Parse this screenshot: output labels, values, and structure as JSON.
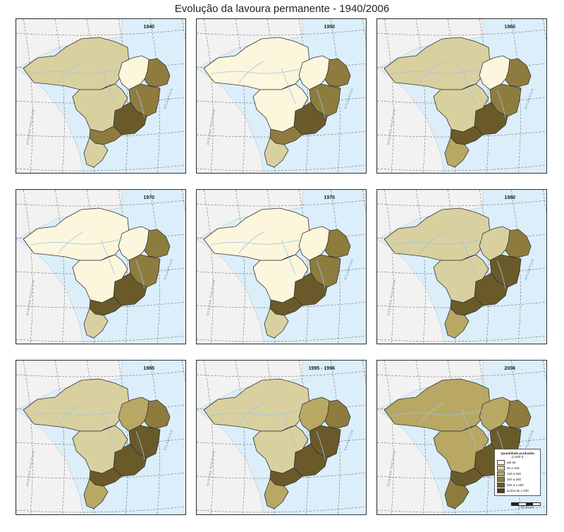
{
  "title": "Evolução da lavoura permanente - 1940/2006",
  "colors": {
    "ocean": "#dbeefa",
    "land_outside": "#f2f2f2",
    "class_0_50": "#fbf6dc",
    "class_50_100": "#d9d0a0",
    "class_100_200": "#b8a864",
    "class_200_500": "#8e7c3e",
    "class_500_1000": "#6a5a2a",
    "class_1000_plus": "#4a3f1c"
  },
  "legend": {
    "title": "Quantidade produzida",
    "unit": "(1.000 t)",
    "items": [
      {
        "label": "até 50",
        "class": "class_0_50"
      },
      {
        "label": "50 a 100",
        "class": "class_50_100"
      },
      {
        "label": "100 a 200",
        "class": "class_100_200"
      },
      {
        "label": "200 a 500",
        "class": "class_200_500"
      },
      {
        "label": "500 a 1.000",
        "class": "class_500_1000"
      },
      {
        "label": "acima de 1.000",
        "class": "class_1000_plus"
      }
    ]
  },
  "scale_label": "0   300   600 km",
  "ocean_labels": {
    "atlantic": "ATLÂNTICO",
    "pacific": "OCEANO PACÍFICO"
  },
  "panels": [
    {
      "year": "1940",
      "N": "class_50_100",
      "NE_W": "class_0_50",
      "NE_E": "class_200_500",
      "BA": "class_200_500",
      "MG": "class_500_1000",
      "CO": "class_50_100",
      "SP": "class_200_500",
      "S": "class_50_100",
      "legend": false
    },
    {
      "year": "1950",
      "N": "class_0_50",
      "NE_W": "class_0_50",
      "NE_E": "class_200_500",
      "BA": "class_200_500",
      "MG": "class_500_1000",
      "CO": "class_0_50",
      "SP": "class_200_500",
      "S": "class_50_100",
      "legend": false
    },
    {
      "year": "1960",
      "N": "class_50_100",
      "NE_W": "class_0_50",
      "NE_E": "class_200_500",
      "BA": "class_200_500",
      "MG": "class_500_1000",
      "CO": "class_50_100",
      "SP": "class_500_1000",
      "S": "class_100_200",
      "legend": false
    },
    {
      "year": "1970",
      "N": "class_0_50",
      "NE_W": "class_0_50",
      "NE_E": "class_200_500",
      "BA": "class_200_500",
      "MG": "class_500_1000",
      "CO": "class_0_50",
      "SP": "class_500_1000",
      "S": "class_50_100",
      "legend": false
    },
    {
      "year": "1975",
      "N": "class_0_50",
      "NE_W": "class_0_50",
      "NE_E": "class_200_500",
      "BA": "class_200_500",
      "MG": "class_500_1000",
      "CO": "class_0_50",
      "SP": "class_500_1000",
      "S": "class_50_100",
      "legend": false
    },
    {
      "year": "1980",
      "N": "class_50_100",
      "NE_W": "class_50_100",
      "NE_E": "class_200_500",
      "BA": "class_500_1000",
      "MG": "class_500_1000",
      "CO": "class_50_100",
      "SP": "class_500_1000",
      "S": "class_100_200",
      "legend": false
    },
    {
      "year": "1985",
      "N": "class_50_100",
      "NE_W": "class_100_200",
      "NE_E": "class_200_500",
      "BA": "class_500_1000",
      "MG": "class_500_1000",
      "CO": "class_50_100",
      "SP": "class_500_1000",
      "S": "class_100_200",
      "legend": false
    },
    {
      "year": "1995 - 1996",
      "N": "class_50_100",
      "NE_W": "class_100_200",
      "NE_E": "class_200_500",
      "BA": "class_500_1000",
      "MG": "class_500_1000",
      "CO": "class_50_100",
      "SP": "class_500_1000",
      "S": "class_100_200",
      "legend": false
    },
    {
      "year": "2006",
      "N": "class_100_200",
      "NE_W": "class_100_200",
      "NE_E": "class_200_500",
      "BA": "class_500_1000",
      "MG": "class_500_1000",
      "CO": "class_100_200",
      "SP": "class_500_1000",
      "S": "class_200_500",
      "legend": true
    }
  ]
}
